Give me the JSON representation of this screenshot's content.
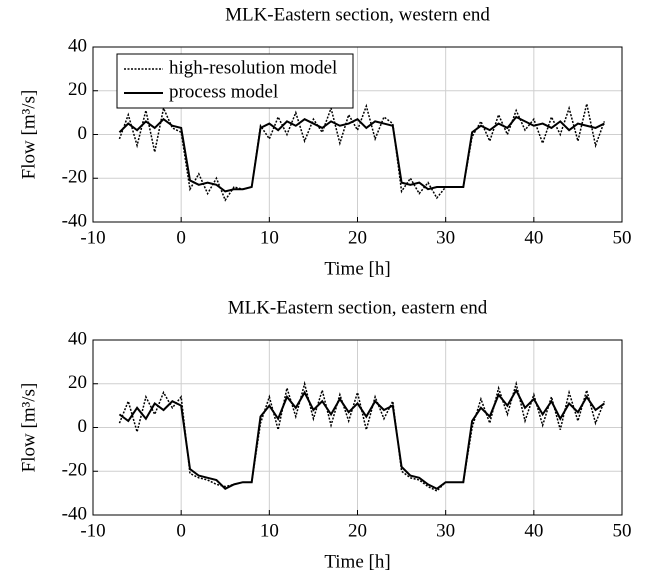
{
  "chart_data": [
    {
      "type": "line",
      "title": "MLK-Eastern section, western end",
      "xlabel": "Time [h]",
      "ylabel": "Flow [m³/s]",
      "xlim": [
        -10,
        50
      ],
      "xticks": [
        -10,
        0,
        10,
        20,
        30,
        40,
        50
      ],
      "ylim": [
        -40,
        40
      ],
      "yticks": [
        -40,
        -20,
        0,
        20,
        40
      ],
      "grid": true,
      "legend": "upper left",
      "x": [
        -7,
        -6,
        -5,
        -4,
        -3,
        -2,
        -1,
        0,
        1,
        2,
        3,
        4,
        5,
        6,
        7,
        8,
        9,
        10,
        11,
        12,
        13,
        14,
        15,
        16,
        17,
        18,
        19,
        20,
        21,
        22,
        23,
        24,
        25,
        26,
        27,
        28,
        29,
        30,
        31,
        32,
        33,
        34,
        35,
        36,
        37,
        38,
        39,
        40,
        41,
        42,
        43,
        44,
        45,
        46,
        47,
        48
      ],
      "series": [
        {
          "name": "high-resolution model",
          "color": "#000000",
          "style": "dotted",
          "values": [
            -2,
            9,
            -5,
            11,
            -8,
            12,
            3,
            1,
            -25,
            -18,
            -27,
            -20,
            -30,
            -24,
            -25,
            -24,
            4,
            -2,
            8,
            0,
            10,
            -3,
            7,
            1,
            12,
            -4,
            9,
            2,
            13,
            -2,
            8,
            5,
            -26,
            -20,
            -27,
            -22,
            -29,
            -24,
            -24,
            -24,
            -1,
            6,
            -3,
            9,
            0,
            11,
            2,
            7,
            -4,
            8,
            0,
            12,
            -3,
            14,
            -5,
            6
          ]
        },
        {
          "name": "process model",
          "color": "#000000",
          "style": "solid",
          "values": [
            1,
            5,
            2,
            6,
            3,
            7,
            4,
            3,
            -21,
            -23,
            -22,
            -23,
            -26,
            -25,
            -25,
            -24,
            3,
            5,
            2,
            6,
            4,
            7,
            5,
            3,
            6,
            4,
            5,
            7,
            3,
            6,
            5,
            4,
            -22,
            -23,
            -22,
            -25,
            -24,
            -24,
            -24,
            -24,
            1,
            4,
            2,
            5,
            3,
            8,
            6,
            4,
            5,
            3,
            6,
            2,
            5,
            4,
            3,
            5
          ]
        }
      ]
    },
    {
      "type": "line",
      "title": "MLK-Eastern section, eastern end",
      "xlabel": "Time [h]",
      "ylabel": "Flow [m³/s]",
      "xlim": [
        -10,
        50
      ],
      "xticks": [
        -10,
        0,
        10,
        20,
        30,
        40,
        50
      ],
      "ylim": [
        -40,
        40
      ],
      "yticks": [
        -40,
        -20,
        0,
        20,
        40
      ],
      "grid": true,
      "x": [
        -7,
        -6,
        -5,
        -4,
        -3,
        -2,
        -1,
        0,
        1,
        2,
        3,
        4,
        5,
        6,
        7,
        8,
        9,
        10,
        11,
        12,
        13,
        14,
        15,
        16,
        17,
        18,
        19,
        20,
        21,
        22,
        23,
        24,
        25,
        26,
        27,
        28,
        29,
        30,
        31,
        32,
        33,
        34,
        35,
        36,
        37,
        38,
        39,
        40,
        41,
        42,
        43,
        44,
        45,
        46,
        47,
        48
      ],
      "series": [
        {
          "color": "#000000",
          "style": "dotted",
          "values": [
            2,
            12,
            -2,
            14,
            6,
            16,
            9,
            14,
            -21,
            -23,
            -24,
            -26,
            -27,
            -26,
            -25,
            -25,
            2,
            14,
            -1,
            18,
            5,
            20,
            4,
            17,
            1,
            15,
            3,
            16,
            -1,
            14,
            4,
            12,
            -20,
            -23,
            -24,
            -27,
            -29,
            -25,
            -25,
            -25,
            0,
            13,
            2,
            18,
            6,
            20,
            3,
            15,
            1,
            14,
            -1,
            16,
            3,
            17,
            2,
            12
          ]
        },
        {
          "color": "#000000",
          "style": "solid",
          "values": [
            6,
            3,
            9,
            4,
            11,
            8,
            12,
            10,
            -19,
            -22,
            -23,
            -24,
            -28,
            -26,
            -25,
            -25,
            5,
            10,
            4,
            14,
            9,
            16,
            8,
            12,
            6,
            13,
            7,
            11,
            5,
            12,
            8,
            10,
            -18,
            -22,
            -23,
            -26,
            -28,
            -25,
            -25,
            -25,
            3,
            9,
            5,
            15,
            10,
            17,
            9,
            13,
            6,
            12,
            4,
            11,
            7,
            14,
            8,
            11
          ]
        }
      ]
    }
  ]
}
